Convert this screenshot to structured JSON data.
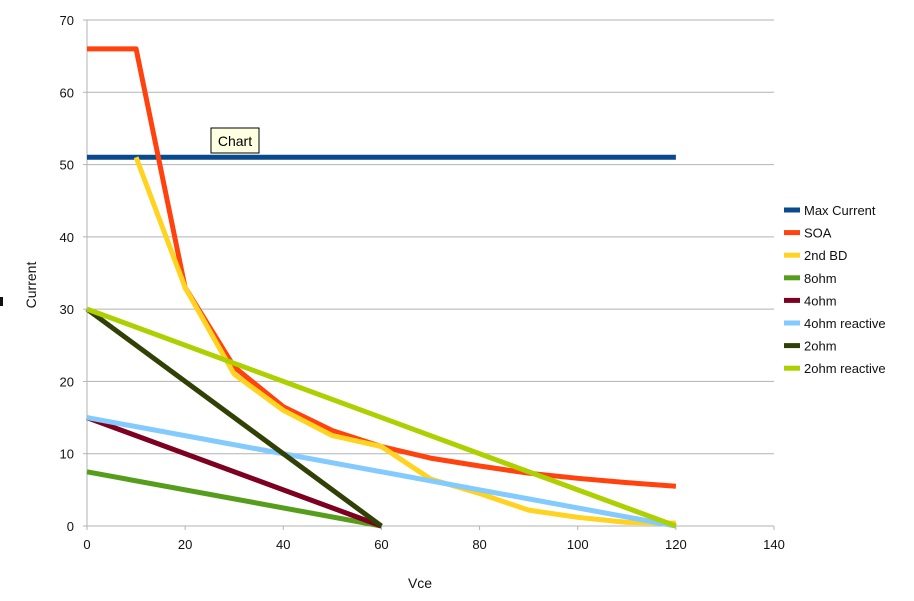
{
  "tooltip": {
    "label": "Chart"
  },
  "chart_data": {
    "type": "line",
    "title": "",
    "xlabel": "Vce",
    "ylabel": "Current",
    "xlim": [
      0,
      140
    ],
    "ylim": [
      0,
      70
    ],
    "xticks": [
      0,
      20,
      40,
      60,
      80,
      100,
      120,
      140
    ],
    "yticks": [
      0,
      10,
      20,
      30,
      40,
      50,
      60,
      70
    ],
    "grid": "horizontal",
    "legend": "right",
    "series": [
      {
        "name": "Max Current",
        "color": "#0a4a8c",
        "x": [
          0,
          120
        ],
        "y": [
          51,
          51
        ]
      },
      {
        "name": "SOA",
        "color": "#ff420e",
        "x": [
          0,
          10,
          20,
          30,
          40,
          50,
          60,
          70,
          80,
          90,
          100,
          110,
          120
        ],
        "y": [
          66,
          66,
          33,
          22,
          16.5,
          13.2,
          11,
          9.4,
          8.3,
          7.3,
          6.6,
          6.0,
          5.5
        ]
      },
      {
        "name": "2nd BD",
        "color": "#ffd320",
        "x": [
          10,
          20,
          30,
          40,
          50,
          60,
          70,
          80,
          90,
          100,
          110,
          120
        ],
        "y": [
          51,
          33,
          21,
          16,
          12.5,
          11,
          6.5,
          4.5,
          2.2,
          1.2,
          0.5,
          0.4
        ]
      },
      {
        "name": "8ohm",
        "color": "#579d1c",
        "x": [
          0,
          60
        ],
        "y": [
          7.5,
          0
        ]
      },
      {
        "name": "4ohm",
        "color": "#7e0021",
        "x": [
          0,
          60
        ],
        "y": [
          15,
          0
        ]
      },
      {
        "name": "4ohm reactive",
        "color": "#83caff",
        "x": [
          0,
          120
        ],
        "y": [
          15,
          0
        ]
      },
      {
        "name": "2ohm",
        "color": "#314004",
        "x": [
          0,
          60
        ],
        "y": [
          30,
          0
        ]
      },
      {
        "name": "2ohm reactive",
        "color": "#aecf00",
        "x": [
          0,
          120
        ],
        "y": [
          30,
          0
        ]
      }
    ]
  }
}
